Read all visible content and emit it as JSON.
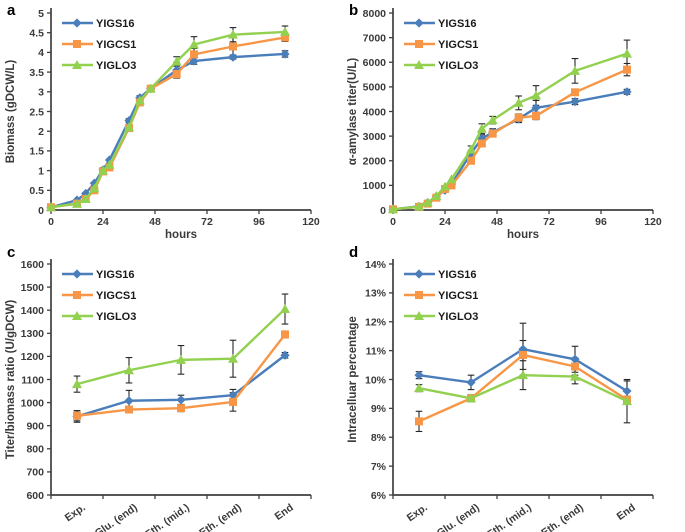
{
  "panels": [
    {
      "label": "a"
    },
    {
      "label": "b"
    },
    {
      "label": "c"
    },
    {
      "label": "d"
    }
  ],
  "colors": {
    "series_blue": "#4a7ebb",
    "series_orange": "#f79646",
    "series_green": "#92d050",
    "axis": "#3f3f3f",
    "error_bar": "#262626"
  },
  "chart_data": [
    {
      "type": "line",
      "panel": "a",
      "xlabel": "hours",
      "ylabel": "Biomass (gDCW/L)",
      "xlim": [
        0,
        120
      ],
      "xticks": [
        0,
        24,
        48,
        72,
        96,
        120
      ],
      "ylim": [
        0,
        5
      ],
      "ytick_labels": [
        "0",
        "0.5",
        "1",
        "1.5",
        "2",
        "2.5",
        "3",
        "3.5",
        "4",
        "4.5",
        "5"
      ],
      "grid": false,
      "legend_position": "top-left",
      "x": [
        0,
        12,
        16,
        20,
        24,
        27,
        36,
        41,
        46,
        58,
        66,
        84,
        108
      ],
      "series": [
        {
          "name": "YIGS16",
          "color_key": "series_blue",
          "marker": "diamond",
          "values": [
            0.07,
            0.25,
            0.42,
            0.68,
            1.02,
            1.27,
            2.27,
            2.85,
            3.08,
            3.55,
            3.78,
            3.88,
            3.96
          ],
          "errors": [
            0,
            0,
            0,
            0,
            0.05,
            0,
            0.05,
            0.05,
            0.05,
            0.2,
            0.08,
            0.05,
            0.08
          ]
        },
        {
          "name": "YIGCS1",
          "color_key": "series_orange",
          "marker": "square",
          "values": [
            0.07,
            0.16,
            0.28,
            0.5,
            0.98,
            1.08,
            2.08,
            2.73,
            3.08,
            3.45,
            3.95,
            4.15,
            4.38
          ],
          "errors": [
            0,
            0,
            0,
            0,
            0,
            0,
            0,
            0,
            0,
            0.1,
            0.15,
            0.22,
            0.1
          ]
        },
        {
          "name": "YIGLO3",
          "color_key": "series_green",
          "marker": "triangle",
          "values": [
            0.07,
            0.16,
            0.28,
            0.55,
            1.0,
            1.15,
            2.1,
            2.78,
            3.08,
            3.77,
            4.2,
            4.45,
            4.52
          ],
          "errors": [
            0,
            0,
            0,
            0,
            0,
            0,
            0,
            0,
            0,
            0.12,
            0.2,
            0.18,
            0.15
          ]
        }
      ]
    },
    {
      "type": "line",
      "panel": "b",
      "xlabel": "hours",
      "ylabel": "α-amylase titer(U/L)",
      "xlim": [
        0,
        120
      ],
      "xticks": [
        0,
        24,
        48,
        72,
        96,
        120
      ],
      "ylim": [
        0,
        8000
      ],
      "ytick_labels": [
        "0",
        "1000",
        "2000",
        "3000",
        "4000",
        "5000",
        "6000",
        "7000",
        "8000"
      ],
      "grid": false,
      "legend_position": "top-left",
      "x": [
        0,
        12,
        16,
        20,
        24,
        27,
        36,
        41,
        46,
        58,
        66,
        84,
        108
      ],
      "series": [
        {
          "name": "YIGS16",
          "color_key": "series_blue",
          "marker": "diamond",
          "values": [
            30,
            150,
            300,
            550,
            800,
            1050,
            2300,
            2900,
            3150,
            3700,
            4150,
            4400,
            4800
          ],
          "errors": [
            0,
            0,
            0,
            0,
            0,
            0,
            120,
            150,
            150,
            150,
            300,
            120,
            100
          ]
        },
        {
          "name": "YIGCS1",
          "color_key": "series_orange",
          "marker": "square",
          "values": [
            30,
            130,
            260,
            500,
            850,
            1000,
            2000,
            2700,
            3100,
            3750,
            3820,
            4780,
            5700
          ],
          "errors": [
            0,
            0,
            0,
            0,
            0,
            0,
            0,
            0,
            120,
            150,
            150,
            0,
            250
          ]
        },
        {
          "name": "YIGLO3",
          "color_key": "series_green",
          "marker": "triangle",
          "values": [
            30,
            140,
            300,
            570,
            950,
            1250,
            2450,
            3300,
            3650,
            4350,
            4650,
            5650,
            6350
          ],
          "errors": [
            0,
            0,
            0,
            0,
            0,
            0,
            150,
            200,
            150,
            280,
            400,
            500,
            550
          ]
        }
      ]
    },
    {
      "type": "line",
      "panel": "c",
      "xlabel": "",
      "ylabel": "Titer/biomass ratio (U/gDCW)",
      "categories": [
        "Exp.",
        "Glu. (end)",
        "Eth. (mid.)",
        "Eth. (end)",
        "End"
      ],
      "ylim": [
        600,
        1600
      ],
      "ytick_labels": [
        "600",
        "700",
        "800",
        "900",
        "1000",
        "1100",
        "1200",
        "1300",
        "1400",
        "1500",
        "1600"
      ],
      "grid": false,
      "legend_position": "top-left",
      "series": [
        {
          "name": "YIGS16",
          "color_key": "series_blue",
          "marker": "diamond",
          "values": [
            940,
            1008,
            1012,
            1032,
            1205
          ],
          "errors": [
            25,
            45,
            20,
            25,
            12
          ]
        },
        {
          "name": "YIGCS1",
          "color_key": "series_orange",
          "marker": "square",
          "values": [
            943,
            970,
            976,
            1003,
            1295
          ],
          "errors": [
            22,
            12,
            15,
            40,
            15
          ]
        },
        {
          "name": "YIGLO3",
          "color_key": "series_green",
          "marker": "triangle",
          "values": [
            1080,
            1140,
            1185,
            1190,
            1405
          ],
          "errors": [
            35,
            55,
            62,
            80,
            65
          ]
        }
      ]
    },
    {
      "type": "line",
      "panel": "d",
      "xlabel": "",
      "ylabel": "Intracelluar percentage",
      "categories": [
        "Exp.",
        "Glu. (end)",
        "Eth. (mid.)",
        "Eth. (end)",
        "End"
      ],
      "ylim": [
        6,
        14
      ],
      "ytick_labels": [
        "6%",
        "7%",
        "8%",
        "9%",
        "10%",
        "11%",
        "12%",
        "13%",
        "14%"
      ],
      "grid": false,
      "legend_position": "top-left",
      "series": [
        {
          "name": "YIGS16",
          "color_key": "series_blue",
          "marker": "diamond",
          "values": [
            10.15,
            9.9,
            11.05,
            10.7,
            9.6
          ],
          "errors": [
            0.12,
            0.25,
            0.9,
            0.45,
            0.35
          ]
        },
        {
          "name": "YIGCS1",
          "color_key": "series_orange",
          "marker": "square",
          "values": [
            8.55,
            9.35,
            10.85,
            10.45,
            9.3
          ],
          "errors": [
            0.35,
            0.12,
            0.5,
            0.3,
            0.12
          ]
        },
        {
          "name": "YIGLO3",
          "color_key": "series_green",
          "marker": "triangle",
          "values": [
            9.7,
            9.35,
            10.15,
            10.1,
            9.25
          ],
          "errors": [
            0.12,
            0.1,
            0.5,
            0.25,
            0.75
          ]
        }
      ]
    }
  ]
}
